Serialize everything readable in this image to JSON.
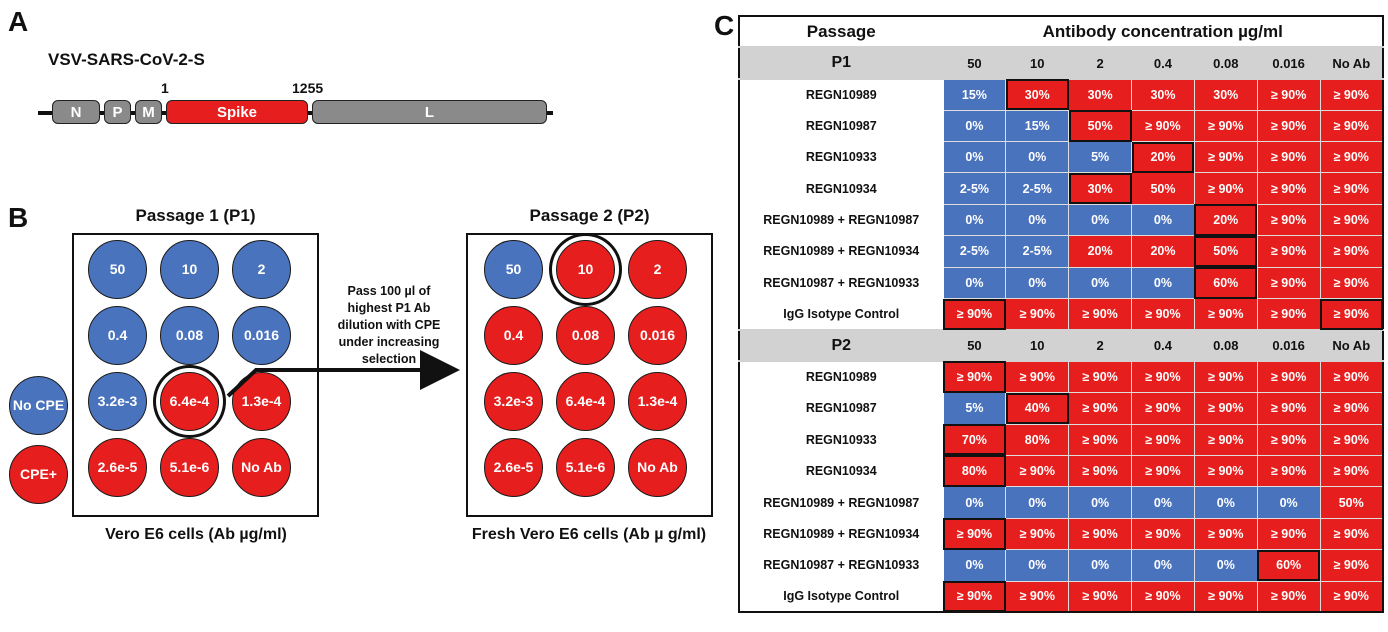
{
  "panel_a": {
    "letter": "A",
    "title": "VSV-SARS-CoV-2-S",
    "pos_start": "1",
    "pos_end": "1255",
    "genes": [
      "N",
      "P",
      "M",
      "Spike",
      "L"
    ]
  },
  "panel_b": {
    "letter": "B",
    "legend": {
      "no_cpe": "No CPE",
      "cpe_pos": "CPE+"
    },
    "p1": {
      "title": "Passage 1 (P1)",
      "caption": "Vero E6 cells (Ab µg/ml)",
      "wells": [
        {
          "label": "50",
          "state": "blue"
        },
        {
          "label": "10",
          "state": "blue"
        },
        {
          "label": "2",
          "state": "blue"
        },
        {
          "label": "0.4",
          "state": "blue"
        },
        {
          "label": "0.08",
          "state": "blue"
        },
        {
          "label": "0.016",
          "state": "blue"
        },
        {
          "label": "3.2e-3",
          "state": "blue"
        },
        {
          "label": "6.4e-4",
          "state": "red"
        },
        {
          "label": "1.3e-4",
          "state": "red"
        },
        {
          "label": "2.6e-5",
          "state": "red"
        },
        {
          "label": "5.1e-6",
          "state": "red"
        },
        {
          "label": "No Ab",
          "state": "red"
        }
      ]
    },
    "p2": {
      "title": "Passage 2 (P2)",
      "caption": "Fresh Vero E6 cells (Ab µ g/ml)",
      "wells": [
        {
          "label": "50",
          "state": "blue"
        },
        {
          "label": "10",
          "state": "red"
        },
        {
          "label": "2",
          "state": "red"
        },
        {
          "label": "0.4",
          "state": "red"
        },
        {
          "label": "0.08",
          "state": "red"
        },
        {
          "label": "0.016",
          "state": "red"
        },
        {
          "label": "3.2e-3",
          "state": "red"
        },
        {
          "label": "6.4e-4",
          "state": "red"
        },
        {
          "label": "1.3e-4",
          "state": "red"
        },
        {
          "label": "2.6e-5",
          "state": "red"
        },
        {
          "label": "5.1e-6",
          "state": "red"
        },
        {
          "label": "No Ab",
          "state": "red"
        }
      ]
    },
    "arrow_text": "Pass 100 µl of highest P1 Ab dilution with CPE under increasing selection"
  },
  "panel_c": {
    "letter": "C",
    "col_passage": "Passage",
    "col_concentration": "Antibody concentration µg/ml",
    "concentrations": [
      "50",
      "10",
      "2",
      "0.4",
      "0.08",
      "0.016",
      "No Ab"
    ],
    "colors": {
      "blue": "#4a73be",
      "red": "#e61e1e",
      "header": "#d2d2d2"
    },
    "sections": [
      {
        "passage": "P1",
        "rows": [
          {
            "name": "REGN10989",
            "values": [
              "15%",
              "30%",
              "30%",
              "30%",
              "30%",
              "≥ 90%",
              "≥ 90%"
            ],
            "colors": [
              "b",
              "r",
              "r",
              "r",
              "r",
              "r",
              "r"
            ],
            "boxed": 1
          },
          {
            "name": "REGN10987",
            "values": [
              "0%",
              "15%",
              "50%",
              "≥ 90%",
              "≥ 90%",
              "≥ 90%",
              "≥ 90%"
            ],
            "colors": [
              "b",
              "b",
              "r",
              "r",
              "r",
              "r",
              "r"
            ],
            "boxed": 2
          },
          {
            "name": "REGN10933",
            "values": [
              "0%",
              "0%",
              "5%",
              "20%",
              "≥ 90%",
              "≥ 90%",
              "≥ 90%"
            ],
            "colors": [
              "b",
              "b",
              "b",
              "r",
              "r",
              "r",
              "r"
            ],
            "boxed": 3
          },
          {
            "name": "REGN10934",
            "values": [
              "2-5%",
              "2-5%",
              "30%",
              "50%",
              "≥ 90%",
              "≥ 90%",
              "≥ 90%"
            ],
            "colors": [
              "b",
              "b",
              "r",
              "r",
              "r",
              "r",
              "r"
            ],
            "boxed": 2
          },
          {
            "name": "REGN10989 + REGN10987",
            "values": [
              "0%",
              "0%",
              "0%",
              "0%",
              "20%",
              "≥ 90%",
              "≥ 90%"
            ],
            "colors": [
              "b",
              "b",
              "b",
              "b",
              "r",
              "r",
              "r"
            ],
            "boxed": 4
          },
          {
            "name": "REGN10989 + REGN10934",
            "values": [
              "2-5%",
              "2-5%",
              "20%",
              "20%",
              "50%",
              "≥ 90%",
              "≥ 90%"
            ],
            "colors": [
              "b",
              "b",
              "r",
              "r",
              "r",
              "r",
              "r"
            ],
            "boxed": 4
          },
          {
            "name": "REGN10987 + REGN10933",
            "values": [
              "0%",
              "0%",
              "0%",
              "0%",
              "60%",
              "≥ 90%",
              "≥ 90%"
            ],
            "colors": [
              "b",
              "b",
              "b",
              "b",
              "r",
              "r",
              "r"
            ],
            "boxed": 4
          },
          {
            "name": "IgG Isotype Control",
            "values": [
              "≥ 90%",
              "≥ 90%",
              "≥ 90%",
              "≥ 90%",
              "≥ 90%",
              "≥ 90%",
              "≥ 90%"
            ],
            "colors": [
              "r",
              "r",
              "r",
              "r",
              "r",
              "r",
              "r"
            ],
            "boxed": 0
          }
        ]
      },
      {
        "passage": "P2",
        "rows": [
          {
            "name": "REGN10989",
            "values": [
              "≥ 90%",
              "≥ 90%",
              "≥ 90%",
              "≥ 90%",
              "≥ 90%",
              "≥ 90%",
              "≥ 90%"
            ],
            "colors": [
              "r",
              "r",
              "r",
              "r",
              "r",
              "r",
              "r"
            ],
            "boxed": 0
          },
          {
            "name": "REGN10987",
            "values": [
              "5%",
              "40%",
              "≥ 90%",
              "≥ 90%",
              "≥ 90%",
              "≥ 90%",
              "≥ 90%"
            ],
            "colors": [
              "b",
              "r",
              "r",
              "r",
              "r",
              "r",
              "r"
            ],
            "boxed": 1
          },
          {
            "name": "REGN10933",
            "values": [
              "70%",
              "80%",
              "≥ 90%",
              "≥ 90%",
              "≥ 90%",
              "≥ 90%",
              "≥ 90%"
            ],
            "colors": [
              "r",
              "r",
              "r",
              "r",
              "r",
              "r",
              "r"
            ],
            "boxed": 0
          },
          {
            "name": "REGN10934",
            "values": [
              "80%",
              "≥ 90%",
              "≥ 90%",
              "≥ 90%",
              "≥ 90%",
              "≥ 90%",
              "≥ 90%"
            ],
            "colors": [
              "r",
              "r",
              "r",
              "r",
              "r",
              "r",
              "r"
            ],
            "boxed": 0
          },
          {
            "name": "REGN10989 + REGN10987",
            "values": [
              "0%",
              "0%",
              "0%",
              "0%",
              "0%",
              "0%",
              "50%"
            ],
            "colors": [
              "b",
              "b",
              "b",
              "b",
              "b",
              "b",
              "r"
            ],
            "boxed": -1
          },
          {
            "name": "REGN10989 + REGN10934",
            "values": [
              "≥ 90%",
              "≥ 90%",
              "≥ 90%",
              "≥ 90%",
              "≥ 90%",
              "≥ 90%",
              "≥ 90%"
            ],
            "colors": [
              "r",
              "r",
              "r",
              "r",
              "r",
              "r",
              "r"
            ],
            "boxed": 0
          },
          {
            "name": "REGN10987 + REGN10933",
            "values": [
              "0%",
              "0%",
              "0%",
              "0%",
              "0%",
              "60%",
              "≥ 90%"
            ],
            "colors": [
              "b",
              "b",
              "b",
              "b",
              "b",
              "r",
              "r"
            ],
            "boxed": 5
          },
          {
            "name": "IgG Isotype Control",
            "values": [
              "≥ 90%",
              "≥ 90%",
              "≥ 90%",
              "≥ 90%",
              "≥ 90%",
              "≥ 90%",
              "≥ 90%"
            ],
            "colors": [
              "r",
              "r",
              "r",
              "r",
              "r",
              "r",
              "r"
            ],
            "boxed": 0
          }
        ]
      }
    ]
  }
}
